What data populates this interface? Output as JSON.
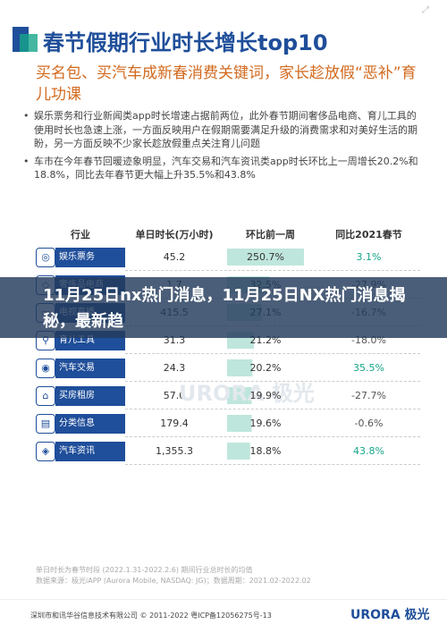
{
  "header": {
    "title": "春节假期行业时长增长top10"
  },
  "subtitle": "买名包、买汽车成新春消费关键词，家长趁放假“恶补”育儿功课",
  "bullets": [
    "娱乐票务和行业新闻类app时长增速占据前两位，此外春节期间奢侈品电商、育儿工具的使用时长也急速上涨，一方面反映用户在假期需要满足升级的消费需求和对美好生活的期盼，另一方面反映不少家长趁放假重点关注育儿问题",
    "车市在今年春节回暖迹象明显，汽车交易和汽车资讯类app时长环比上一周增长20.2%和18.8%，同比去年春节更大幅上升35.5%和43.8%"
  ],
  "table": {
    "headers": [
      "行业",
      "单日时长(万小时)",
      "环比前一周",
      "同比2021春节"
    ],
    "rows": [
      {
        "industry": "娱乐票务",
        "duration": "45.2",
        "wow": "250.7%",
        "wow_fill": 1.0,
        "yoy": "3.1%",
        "yoy_sign": "pos"
      },
      {
        "industry": "奢侈品电商",
        "duration": "1.7",
        "wow": "32.5%",
        "wow_fill": 0.55,
        "yoy": "-27.9%",
        "yoy_sign": "neg"
      },
      {
        "industry": "电视直播",
        "duration": "415.5",
        "wow": "27.1%",
        "wow_fill": 0.45,
        "yoy": "-16.7%",
        "yoy_sign": "neg"
      },
      {
        "industry": "育儿工具",
        "duration": "31.3",
        "wow": "21.2%",
        "wow_fill": 0.35,
        "yoy": "-18.0%",
        "yoy_sign": "neg"
      },
      {
        "industry": "汽车交易",
        "duration": "24.3",
        "wow": "20.2%",
        "wow_fill": 0.33,
        "yoy": "35.5%",
        "yoy_sign": "pos"
      },
      {
        "industry": "买房租房",
        "duration": "57.0",
        "wow": "19.9%",
        "wow_fill": 0.32,
        "yoy": "-27.7%",
        "yoy_sign": "neg"
      },
      {
        "industry": "分类信息",
        "duration": "179.4",
        "wow": "19.6%",
        "wow_fill": 0.32,
        "yoy": "-0.6%",
        "yoy_sign": "neg"
      },
      {
        "industry": "汽车资讯",
        "duration": "1,355.3",
        "wow": "18.8%",
        "wow_fill": 0.3,
        "yoy": "43.8%",
        "yoy_sign": "pos"
      }
    ]
  },
  "banner": {
    "text": "11月25日nx热门消息，11月25日NX热门消息揭秘，最新趋"
  },
  "footnote": {
    "line1": "单日时长为春节时段 (2022.1.31-2022.2.6) 期间行业总时长的均值",
    "line2": "数据来源：极光iAPP (Aurora Mobile, NASDAQ: JG)；数据周期：2021.02-2022.02"
  },
  "watermark": "URORA 极光",
  "footer": {
    "copyright": "深圳市和讯华谷信息技术有限公司 © 2011-2022 粤ICP备12056275号-13",
    "brand": "URORA 极光"
  },
  "colors": {
    "primary": "#1f4e9a",
    "accent_orange": "#d2691e",
    "positive": "#17a589",
    "bar_fill": "#bfe6dc"
  }
}
